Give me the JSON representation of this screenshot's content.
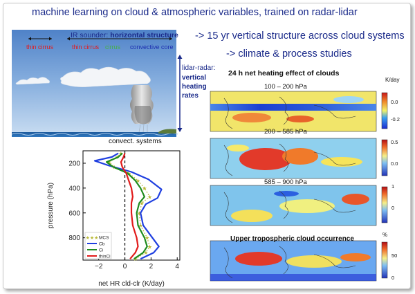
{
  "headline": {
    "line1": "machine learning on cloud & atmospheric variables, trained on radar-lidar",
    "line2": "-> 15 yr vertical structure across cloud systems",
    "line3": "-> climate & process studies"
  },
  "schematic": {
    "ir_prefix": "IR sounder: ",
    "ir_bold": "horizontal structure",
    "thin_cirrus_left": "thin cirrus",
    "thin_cirrus_mid": "thin cirrus",
    "cirrus": "cirrus",
    "convective_core": "convective core",
    "lidar_radar": "lidar-radar:",
    "vertical": "vertical",
    "heating": "heating",
    "rates": "rates",
    "convect_systems": "convect. systems",
    "colors": {
      "thin_cirrus": "#e31a1c",
      "cirrus": "#44b04a",
      "convective_core": "#1c2fb0",
      "text_blue": "#1a2a8a"
    }
  },
  "profile_chart": {
    "xlabel": "net HR cld-clr (K/day)",
    "ylabel": "pressure (hPa)"
  },
  "chart_data": {
    "type": "line",
    "xlabel": "net HR cld-clr (K/day)",
    "ylabel": "pressure (hPa)",
    "xlim": [
      -3.2,
      4.2
    ],
    "ylim": [
      980,
      100
    ],
    "x_ticks": [
      -2,
      0,
      2,
      4
    ],
    "y_ticks": [
      200,
      400,
      600,
      800
    ],
    "legend_position": "lower-left",
    "series": [
      {
        "name": "MCS",
        "color": "#b9b938",
        "style": "dotted-star",
        "x": [
          -0.3,
          -0.6,
          -1.2,
          -0.8,
          0.3,
          1.0,
          1.5,
          1.9,
          1.3,
          1.1,
          1.2,
          1.7,
          1.9,
          1.6,
          0.8
        ],
        "y": [
          120,
          150,
          190,
          230,
          280,
          340,
          400,
          470,
          520,
          600,
          700,
          800,
          870,
          920,
          970
        ]
      },
      {
        "name": "Cb",
        "color": "#1f3fe0",
        "style": "solid",
        "x": [
          -0.5,
          -1.0,
          -2.3,
          -1.2,
          0.5,
          1.8,
          2.8,
          2.5,
          1.6,
          1.2,
          1.4,
          2.1,
          2.6,
          2.2,
          1.2
        ],
        "y": [
          120,
          150,
          180,
          220,
          270,
          330,
          410,
          480,
          530,
          600,
          700,
          800,
          870,
          920,
          970
        ]
      },
      {
        "name": "Ci",
        "color": "#1e8b1e",
        "style": "solid",
        "x": [
          -0.2,
          -0.5,
          -1.4,
          -0.9,
          0.2,
          0.8,
          1.2,
          1.5,
          1.1,
          0.9,
          1.0,
          1.5,
          1.7,
          1.4,
          0.7
        ],
        "y": [
          120,
          150,
          190,
          230,
          280,
          340,
          400,
          470,
          520,
          600,
          700,
          800,
          870,
          920,
          970
        ]
      },
      {
        "name": "thinCi",
        "color": "#e11a1a",
        "style": "solid",
        "x": [
          0.0,
          -0.1,
          -0.3,
          -0.2,
          0.1,
          0.3,
          0.5,
          0.6,
          0.5,
          0.5,
          0.6,
          0.9,
          1.0,
          0.8,
          0.4
        ],
        "y": [
          120,
          150,
          190,
          230,
          280,
          340,
          400,
          470,
          520,
          600,
          700,
          800,
          870,
          920,
          970
        ]
      }
    ]
  },
  "maps": {
    "title": "24 h  net heating effect of clouds",
    "panels": [
      {
        "label": "100 – 200 hPa",
        "unit": "K/day",
        "ticks": [
          "0.0",
          "-0.2"
        ]
      },
      {
        "label": "200 – 585 hPa",
        "unit": "",
        "ticks": [
          "0.5",
          "0.0"
        ]
      },
      {
        "label": "585 – 900 hPa",
        "unit": "",
        "ticks": [
          "1",
          "0"
        ]
      },
      {
        "label": "Upper tropospheric cloud occurrence",
        "unit": "%",
        "ticks": [
          "50",
          "0"
        ]
      }
    ]
  }
}
